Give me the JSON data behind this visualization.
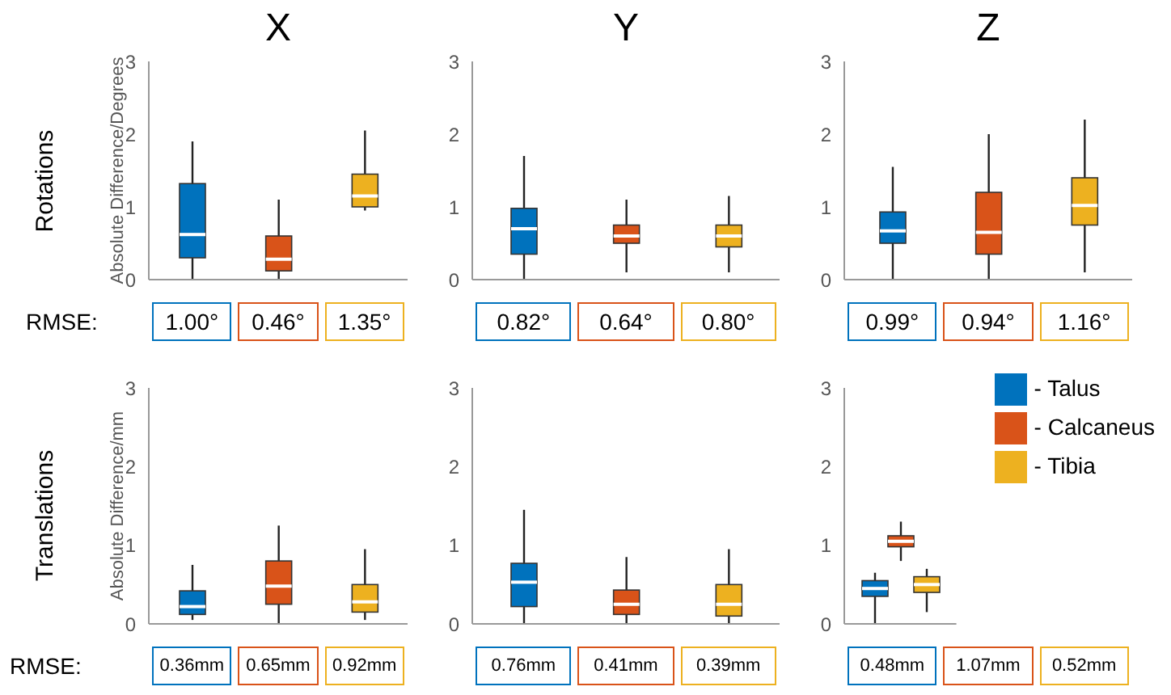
{
  "chart_data": [
    {
      "type": "box",
      "title": "X",
      "ylabel": "Absolute Difference/Degrees",
      "categories": [
        null
      ],
      "ylim": [
        0,
        3
      ],
      "yticks": [
        0,
        1,
        2,
        3
      ],
      "tick_labels": "y",
      "annotations": [
        "Rotations",
        "RMSE:",
        "1.00°",
        "0.46°",
        "1.35°"
      ],
      "series": [
        {
          "color": "#0072bd",
          "boxes": [
            {
              "low": 0,
              "q1": 0.3,
              "median": 0.62,
              "q3": 1.32,
              "high": 1.9
            }
          ]
        },
        {
          "color": "#d95319",
          "boxes": [
            {
              "low": 0,
              "q1": 0.12,
              "median": 0.28,
              "q3": 0.6,
              "high": 1.1
            }
          ]
        },
        {
          "color": "#edb120",
          "boxes": [
            {
              "low": 0.95,
              "q1": 1.0,
              "median": 1.15,
              "q3": 1.45,
              "high": 2.05
            }
          ]
        }
      ]
    },
    {
      "type": "box",
      "title": "Y",
      "categories": [
        null
      ],
      "ylim": [
        0,
        3
      ],
      "yticks": [
        0,
        1,
        2,
        3
      ],
      "tick_labels": "y",
      "annotations": [
        "0.82°",
        "0.64°",
        "0.80°"
      ],
      "series": [
        {
          "color": "#0072bd",
          "boxes": [
            {
              "low": 0,
              "q1": 0.35,
              "median": 0.7,
              "q3": 0.98,
              "high": 1.7
            }
          ]
        },
        {
          "color": "#d95319",
          "boxes": [
            {
              "low": 0.1,
              "q1": 0.5,
              "median": 0.6,
              "q3": 0.75,
              "high": 1.1
            }
          ]
        },
        {
          "color": "#edb120",
          "boxes": [
            {
              "low": 0.1,
              "q1": 0.45,
              "median": 0.6,
              "q3": 0.75,
              "high": 1.15
            }
          ]
        }
      ]
    },
    {
      "type": "box",
      "title": "Z",
      "categories": [
        null
      ],
      "ylim": [
        0,
        3
      ],
      "yticks": [
        0,
        1,
        2,
        3
      ],
      "tick_labels": "y",
      "annotations": [
        "0.99°",
        "0.94°",
        "1.16°"
      ],
      "series": [
        {
          "color": "#0072bd",
          "boxes": [
            {
              "low": 0,
              "q1": 0.5,
              "median": 0.67,
              "q3": 0.93,
              "high": 1.55
            }
          ]
        },
        {
          "color": "#d95319",
          "boxes": [
            {
              "low": 0,
              "q1": 0.35,
              "median": 0.65,
              "q3": 1.2,
              "high": 2.0
            }
          ]
        },
        {
          "color": "#edb120",
          "boxes": [
            {
              "low": 0.1,
              "q1": 0.75,
              "median": 1.02,
              "q3": 1.4,
              "high": 2.2
            }
          ]
        }
      ]
    },
    {
      "type": "box",
      "ylabel": "Absolute Difference/mm",
      "categories": [
        null
      ],
      "ylim": [
        0,
        3
      ],
      "yticks": [
        0,
        1,
        2,
        3
      ],
      "tick_labels": "y",
      "annotations": [
        "Translations",
        "RMSE:",
        "0.36mm",
        "0.65mm",
        "0.92mm"
      ],
      "series": [
        {
          "color": "#0072bd",
          "boxes": [
            {
              "low": 0.05,
              "q1": 0.12,
              "median": 0.22,
              "q3": 0.42,
              "high": 0.75
            }
          ]
        },
        {
          "color": "#d95319",
          "boxes": [
            {
              "low": 0,
              "q1": 0.25,
              "median": 0.48,
              "q3": 0.8,
              "high": 1.25
            }
          ]
        },
        {
          "color": "#edb120",
          "boxes": [
            {
              "low": 0.05,
              "q1": 0.15,
              "median": 0.28,
              "q3": 0.5,
              "high": 0.95
            }
          ]
        }
      ]
    },
    {
      "type": "box",
      "categories": [
        null
      ],
      "ylim": [
        0,
        3
      ],
      "yticks": [
        0,
        1,
        2,
        3
      ],
      "tick_labels": "y",
      "annotations": [
        "0.76mm",
        "0.41mm",
        "0.39mm"
      ],
      "series": [
        {
          "color": "#0072bd",
          "boxes": [
            {
              "low": 0,
              "q1": 0.22,
              "median": 0.53,
              "q3": 0.77,
              "high": 1.45
            }
          ]
        },
        {
          "color": "#d95319",
          "boxes": [
            {
              "low": 0,
              "q1": 0.12,
              "median": 0.25,
              "q3": 0.43,
              "high": 0.85
            }
          ]
        },
        {
          "color": "#edb120",
          "boxes": [
            {
              "low": 0,
              "q1": 0.1,
              "median": 0.25,
              "q3": 0.5,
              "high": 0.95
            }
          ]
        }
      ]
    },
    {
      "type": "box",
      "categories": [
        null
      ],
      "ylim": [
        0,
        3
      ],
      "yticks": [
        0,
        1,
        2,
        3
      ],
      "tick_labels": "y",
      "legend": "top right",
      "annotations": [
        "0.48mm",
        "1.07mm",
        "0.52mm"
      ],
      "series": [
        {
          "name": "- Talus",
          "color": "#0072bd",
          "boxes": [
            {
              "low": 0,
              "q1": 0.35,
              "median": 0.45,
              "q3": 0.55,
              "high": 0.65
            }
          ]
        },
        {
          "name": "- Calcaneus",
          "color": "#d95319",
          "boxes": [
            {
              "low": 0.8,
              "q1": 0.98,
              "median": 1.05,
              "q3": 1.12,
              "high": 1.3
            }
          ]
        },
        {
          "name": "- Tibia",
          "color": "#edb120",
          "boxes": [
            {
              "low": 0.15,
              "q1": 0.4,
              "median": 0.5,
              "q3": 0.6,
              "high": 0.7
            }
          ]
        }
      ]
    }
  ]
}
